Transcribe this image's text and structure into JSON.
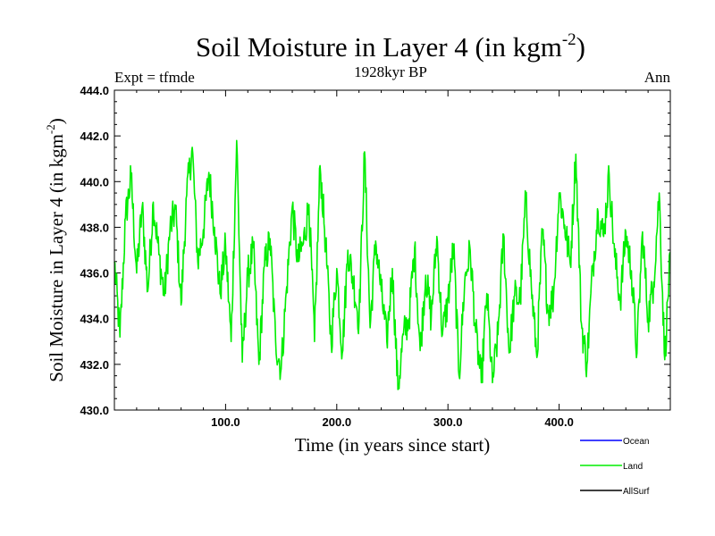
{
  "chart_data": {
    "type": "line",
    "title": "Soil Moisture in Layer 4 (in kgm",
    "title_superscript": "-2",
    "title_close": ")",
    "subtitle": "1928kyr BP",
    "left_label": "Expt = tfmde",
    "right_label": "Ann",
    "xlabel": "Time (in years since start)",
    "ylabel": "Soil Moisture in Layer 4 (in kgm",
    "ylabel_superscript": "-2",
    "ylabel_close": ")",
    "xlim": [
      0,
      500
    ],
    "ylim": [
      430,
      444
    ],
    "x_ticks": [
      100,
      200,
      300,
      400
    ],
    "x_tick_labels": [
      "100.0",
      "200.0",
      "300.0",
      "400.0"
    ],
    "y_ticks": [
      430,
      432,
      434,
      436,
      438,
      440,
      442,
      444
    ],
    "y_tick_labels": [
      "430.0",
      "432.0",
      "434.0",
      "436.0",
      "438.0",
      "440.0",
      "442.0",
      "444.0"
    ],
    "series": [
      {
        "name": "Ocean",
        "color": "#0000ff",
        "values": []
      },
      {
        "name": "Land",
        "color": "#00ee00",
        "x": [
          0,
          5,
          10,
          15,
          20,
          25,
          30,
          35,
          40,
          45,
          50,
          55,
          60,
          65,
          70,
          75,
          80,
          85,
          90,
          95,
          100,
          105,
          110,
          115,
          120,
          125,
          130,
          135,
          140,
          145,
          150,
          155,
          160,
          165,
          170,
          175,
          180,
          185,
          190,
          195,
          200,
          205,
          210,
          215,
          220,
          225,
          230,
          235,
          240,
          245,
          250,
          255,
          260,
          265,
          270,
          275,
          280,
          285,
          290,
          295,
          300,
          305,
          310,
          315,
          320,
          325,
          330,
          335,
          340,
          345,
          350,
          355,
          360,
          365,
          370,
          375,
          380,
          385,
          390,
          395,
          400,
          405,
          410,
          415,
          420,
          425,
          430,
          435,
          440,
          445,
          450,
          455,
          460,
          465,
          470,
          475,
          480,
          485,
          490,
          495,
          500
        ],
        "values": [
          436.5,
          433.2,
          438.4,
          440.2,
          436.0,
          438.9,
          435.2,
          439.1,
          436.8,
          435.0,
          437.9,
          438.8,
          434.6,
          439.4,
          441.5,
          436.5,
          437.9,
          440.4,
          438.0,
          435.1,
          437.2,
          433.0,
          441.8,
          432.1,
          435.9,
          437.1,
          432.0,
          436.3,
          437.5,
          433.0,
          431.8,
          435.4,
          438.9,
          436.5,
          437.3,
          439.0,
          433.0,
          440.7,
          437.3,
          432.9,
          436.2,
          432.5,
          437.0,
          435.6,
          433.9,
          441.3,
          433.6,
          437.4,
          435.2,
          433.0,
          436.2,
          430.9,
          433.3,
          434.0,
          437.1,
          432.6,
          435.9,
          434.0,
          437.6,
          433.3,
          434.8,
          437.2,
          431.5,
          435.6,
          437.0,
          433.4,
          431.2,
          435.1,
          431.2,
          433.3,
          437.7,
          432.5,
          435.0,
          434.8,
          439.3,
          435.4,
          432.3,
          437.9,
          434.3,
          435.0,
          439.5,
          438.1,
          436.4,
          441.2,
          433.8,
          432.0,
          436.1,
          438.7,
          437.6,
          440.3,
          436.7,
          434.8,
          437.8,
          436.1,
          432.5,
          437.8,
          434.0,
          435.6,
          439.5,
          432.2,
          436.9
        ]
      },
      {
        "name": "AllSurf",
        "color": "#000000",
        "values": []
      }
    ],
    "legend_position": "bottom-right, below plot"
  }
}
